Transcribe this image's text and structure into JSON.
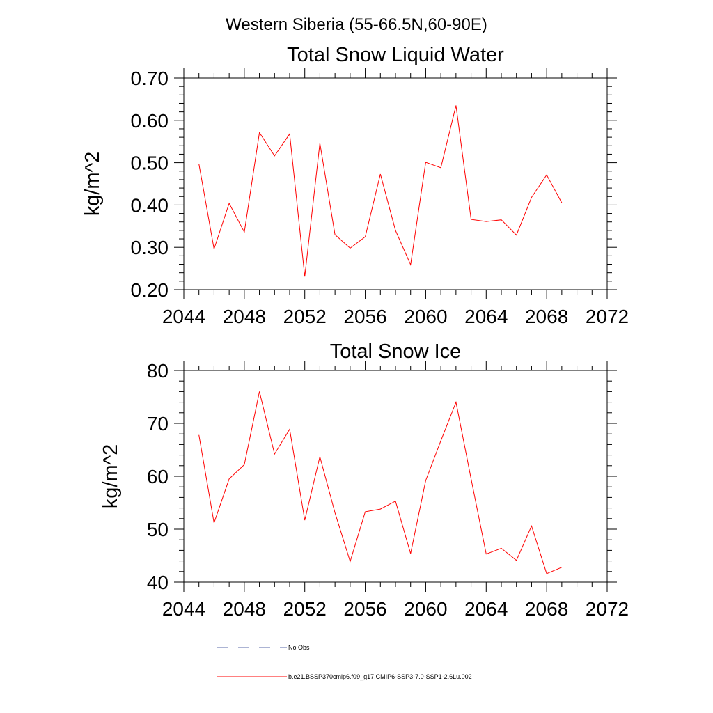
{
  "figure_title": "Western Siberia (55-66.5N,60-90E)",
  "chart_data": [
    {
      "type": "line",
      "title": "Total Snow Liquid Water",
      "xlabel": "",
      "ylabel": "kg/m^2",
      "xlim": [
        2044,
        2072
      ],
      "ylim": [
        0.2,
        0.7
      ],
      "xticks": [
        "2044",
        "2048",
        "2052",
        "2056",
        "2060",
        "2064",
        "2068",
        "2072"
      ],
      "yticks": [
        "0.20",
        "0.30",
        "0.40",
        "0.50",
        "0.60",
        "0.70"
      ],
      "grid": false,
      "series": [
        {
          "name": "b.e21.BSSP370cmip6.f09_g17.CMIP6-SSP3-7.0-SSP1-2.6Lu.002",
          "color": "#ff0000",
          "x": [
            2045,
            2046,
            2047,
            2048,
            2049,
            2050,
            2051,
            2052,
            2053,
            2054,
            2055,
            2056,
            2057,
            2058,
            2059,
            2060,
            2061,
            2062,
            2063,
            2064,
            2065,
            2066,
            2067,
            2068,
            2069
          ],
          "y": [
            0.497,
            0.296,
            0.404,
            0.336,
            0.571,
            0.516,
            0.568,
            0.231,
            0.546,
            0.33,
            0.298,
            0.325,
            0.473,
            0.34,
            0.259,
            0.501,
            0.488,
            0.635,
            0.366,
            0.361,
            0.365,
            0.329,
            0.418,
            0.471,
            0.405
          ]
        }
      ]
    },
    {
      "type": "line",
      "title": "Total Snow Ice",
      "xlabel": "",
      "ylabel": "kg/m^2",
      "xlim": [
        2044,
        2072
      ],
      "ylim": [
        40,
        80
      ],
      "xticks": [
        "2044",
        "2048",
        "2052",
        "2056",
        "2060",
        "2064",
        "2068",
        "2072"
      ],
      "yticks": [
        "40",
        "50",
        "60",
        "70",
        "80"
      ],
      "grid": false,
      "series": [
        {
          "name": "b.e21.BSSP370cmip6.f09_g17.CMIP6-SSP3-7.0-SSP1-2.6Lu.002",
          "color": "#ff0000",
          "x": [
            2045,
            2046,
            2047,
            2048,
            2049,
            2050,
            2051,
            2052,
            2053,
            2054,
            2055,
            2056,
            2057,
            2058,
            2059,
            2060,
            2061,
            2062,
            2063,
            2064,
            2065,
            2066,
            2067,
            2068,
            2069
          ],
          "y": [
            67.8,
            51.2,
            59.5,
            62.2,
            76.0,
            64.2,
            68.9,
            51.7,
            63.7,
            53.1,
            43.9,
            53.3,
            53.8,
            55.3,
            45.4,
            59.2,
            66.7,
            74.0,
            59.5,
            45.3,
            46.4,
            44.1,
            50.6,
            41.6,
            42.8
          ]
        }
      ]
    }
  ],
  "legend": [
    {
      "label": "No Obs",
      "style": "dashed",
      "color": "#5a6aa8"
    },
    {
      "label": "b.e21.BSSP370cmip6.f09_g17.CMIP6-SSP3-7.0-SSP1-2.6Lu.002",
      "style": "solid",
      "color": "#ff0000"
    }
  ]
}
